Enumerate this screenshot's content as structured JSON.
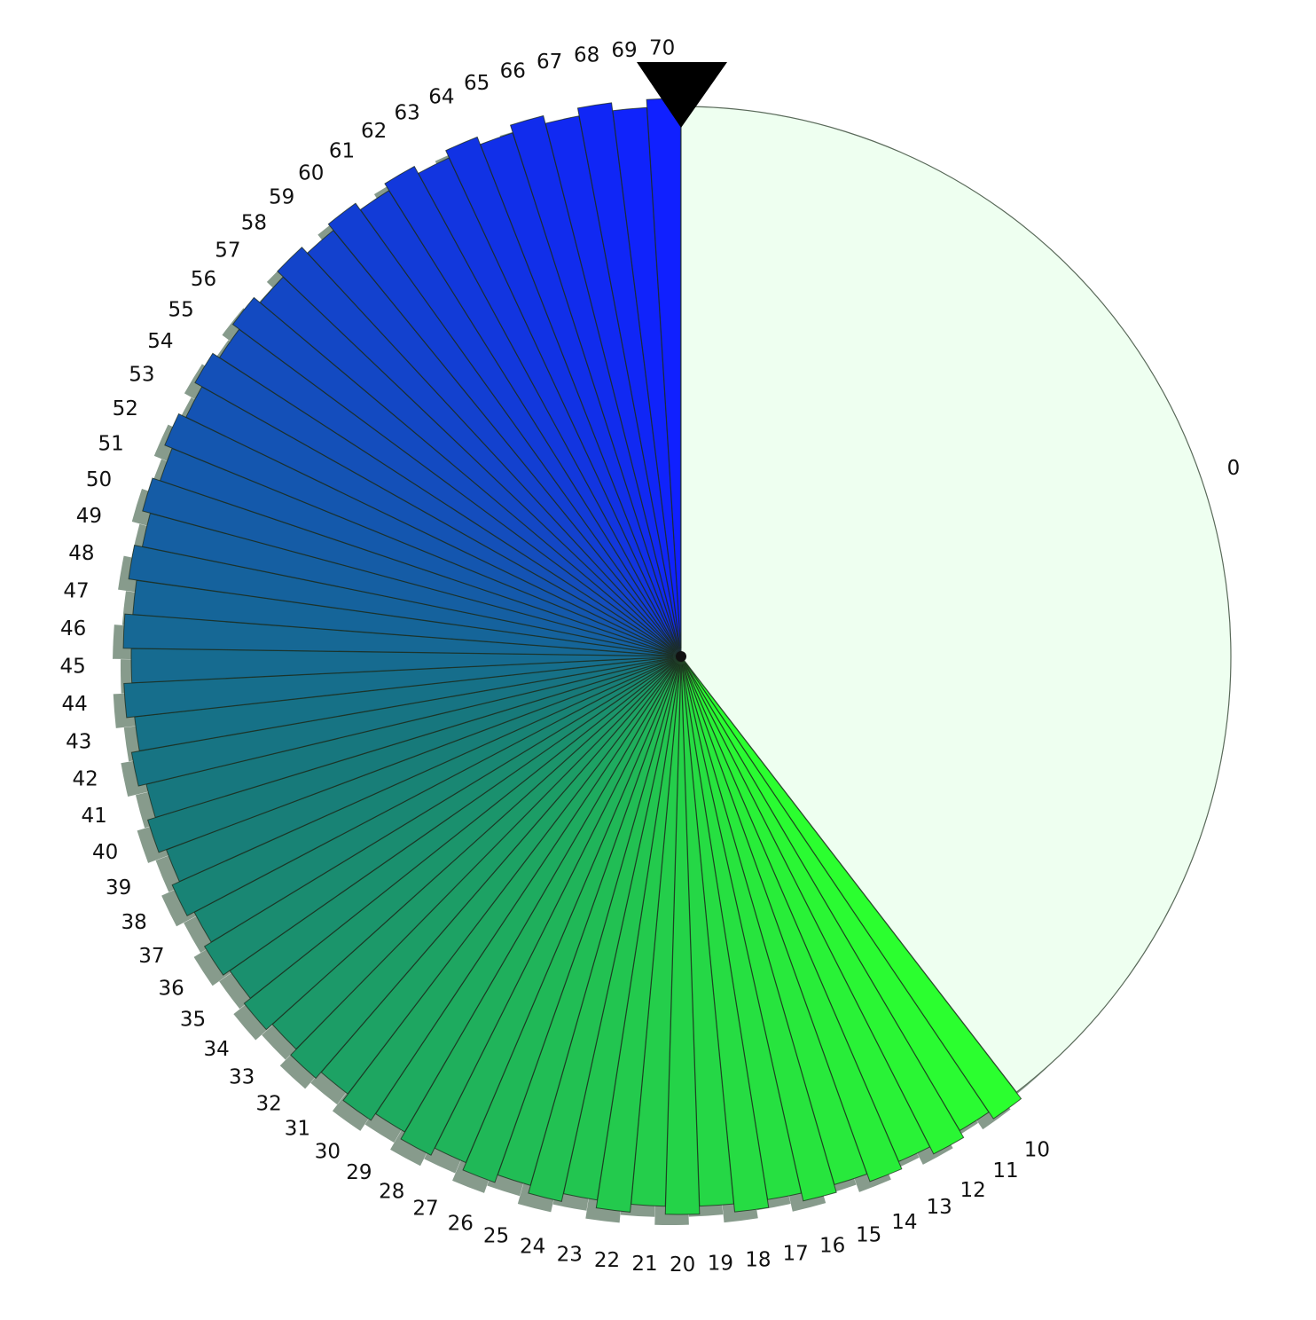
{
  "chart_data": {
    "type": "pie",
    "labels": [
      "0",
      "10",
      "11",
      "12",
      "13",
      "14",
      "15",
      "16",
      "17",
      "18",
      "19",
      "20",
      "21",
      "22",
      "23",
      "24",
      "25",
      "26",
      "27",
      "28",
      "29",
      "30",
      "31",
      "32",
      "33",
      "34",
      "35",
      "36",
      "37",
      "38",
      "39",
      "40",
      "41",
      "42",
      "43",
      "44",
      "45",
      "46",
      "47",
      "48",
      "49",
      "50",
      "51",
      "52",
      "53",
      "54",
      "55",
      "56",
      "57",
      "58",
      "59",
      "60",
      "61",
      "62",
      "63",
      "64",
      "65",
      "66",
      "67",
      "68",
      "69",
      "70"
    ],
    "values": [
      39.92,
      1,
      1,
      1,
      1,
      1,
      1,
      1,
      1,
      1,
      1,
      1,
      1,
      1,
      1,
      1,
      1,
      1,
      1,
      1,
      1,
      1,
      1,
      1,
      1,
      1,
      1,
      1,
      1,
      1,
      1,
      1,
      1,
      1,
      1,
      1,
      1,
      1,
      1,
      1,
      1,
      1,
      1,
      1,
      1,
      1,
      1,
      1,
      1,
      1,
      1,
      1,
      1,
      1,
      1,
      1,
      1,
      1,
      1,
      1,
      1,
      1
    ],
    "exploded": [
      false,
      true,
      false,
      true,
      false,
      true,
      false,
      true,
      false,
      true,
      false,
      true,
      false,
      true,
      false,
      true,
      false,
      true,
      false,
      true,
      false,
      true,
      false,
      true,
      false,
      true,
      false,
      true,
      false,
      true,
      false,
      true,
      false,
      true,
      false,
      true,
      false,
      true,
      false,
      true,
      false,
      true,
      false,
      true,
      false,
      true,
      false,
      true,
      false,
      true,
      false,
      true,
      false,
      true,
      false,
      true,
      false,
      true,
      false,
      true,
      false,
      true
    ],
    "start_angle": "12 o'clock",
    "direction": "clockwise",
    "shadow": true,
    "legend": "none",
    "title": "",
    "colors": {
      "first_slice": "#eefff0",
      "gradient_start": "#2bff2f",
      "gradient_mid": "#177a7a",
      "gradient_end": "#1020ff",
      "marker": "#000000"
    },
    "marker": "downward-triangle at 12 o'clock"
  }
}
